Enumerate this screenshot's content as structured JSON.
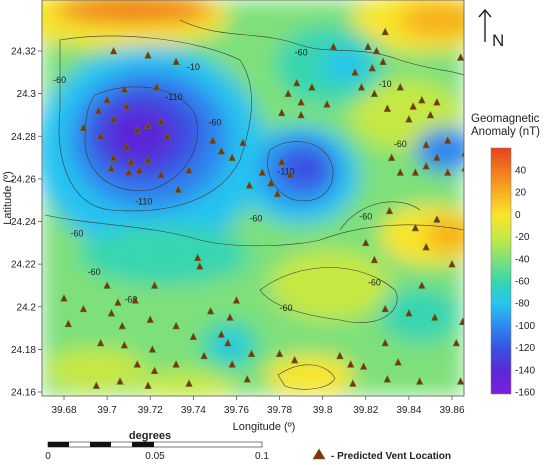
{
  "map": {
    "x_axis_title": "Longitude (º)",
    "y_axis_title": "Latitude (º)",
    "x_ticks": [
      "39.68",
      "39.7",
      "39.72",
      "39.74",
      "39.76",
      "39.78",
      "39.8",
      "39.82",
      "39.84",
      "39.86"
    ],
    "y_ticks": [
      "24.32",
      "24.3",
      "24.28",
      "24.26",
      "24.24",
      "24.22",
      "24.2",
      "24.18",
      "24.16"
    ],
    "contour_labels": [
      {
        "text": "-10",
        "lon": 39.74,
        "lat": 24.311
      },
      {
        "text": "-10",
        "lon": 39.829,
        "lat": 24.303
      },
      {
        "text": "-60",
        "lon": 39.678,
        "lat": 24.305
      },
      {
        "text": "-60",
        "lon": 39.79,
        "lat": 24.318
      },
      {
        "text": "-110",
        "lon": 39.731,
        "lat": 24.297
      },
      {
        "text": "-60",
        "lon": 39.75,
        "lat": 24.285
      },
      {
        "text": "-60",
        "lon": 39.836,
        "lat": 24.275
      },
      {
        "text": "-110",
        "lon": 39.783,
        "lat": 24.262
      },
      {
        "text": "-110",
        "lon": 39.717,
        "lat": 24.248
      },
      {
        "text": "-60",
        "lon": 39.686,
        "lat": 24.233
      },
      {
        "text": "-60",
        "lon": 39.769,
        "lat": 24.24
      },
      {
        "text": "-60",
        "lon": 39.82,
        "lat": 24.241
      },
      {
        "text": "-60",
        "lon": 39.694,
        "lat": 24.215
      },
      {
        "text": "-60",
        "lon": 39.711,
        "lat": 24.202
      },
      {
        "text": "-60",
        "lon": 39.824,
        "lat": 24.21
      },
      {
        "text": "-60",
        "lon": 39.783,
        "lat": 24.198
      }
    ]
  },
  "colorbar": {
    "title_line1": "Geomagnetic",
    "title_line2": "Anomaly (nT)",
    "ticks": [
      "40",
      "20",
      "0",
      "-20",
      "-40",
      "-60",
      "-80",
      "-100",
      "-120",
      "-140",
      "-160"
    ],
    "colors_top_to_bottom": [
      "#e8411c",
      "#f07a1c",
      "#f7b01f",
      "#f8e52c",
      "#c6e843",
      "#7ee07a",
      "#37d6b0",
      "#27c3f0",
      "#2e86ee",
      "#3a4fe2",
      "#5a28d8",
      "#7e1edc"
    ]
  },
  "vents": [
    [
      39.703,
      24.32
    ],
    [
      39.719,
      24.318
    ],
    [
      39.732,
      24.315
    ],
    [
      39.723,
      24.303
    ],
    [
      39.708,
      24.302
    ],
    [
      39.7,
      24.297
    ],
    [
      39.696,
      24.292
    ],
    [
      39.709,
      24.294
    ],
    [
      39.703,
      24.288
    ],
    [
      39.719,
      24.285
    ],
    [
      39.714,
      24.283
    ],
    [
      39.725,
      24.287
    ],
    [
      39.728,
      24.28
    ],
    [
      39.689,
      24.284
    ],
    [
      39.697,
      24.28
    ],
    [
      39.709,
      24.275
    ],
    [
      39.703,
      24.27
    ],
    [
      39.711,
      24.268
    ],
    [
      39.719,
      24.269
    ],
    [
      39.702,
      24.265
    ],
    [
      39.71,
      24.263
    ],
    [
      39.715,
      24.264
    ],
    [
      39.725,
      24.262
    ],
    [
      39.738,
      24.264
    ],
    [
      39.733,
      24.255
    ],
    [
      39.749,
      24.278
    ],
    [
      39.753,
      24.273
    ],
    [
      39.763,
      24.277
    ],
    [
      39.758,
      24.27
    ],
    [
      39.781,
      24.268
    ],
    [
      39.785,
      24.262
    ],
    [
      39.776,
      24.258
    ],
    [
      39.779,
      24.253
    ],
    [
      39.772,
      24.263
    ],
    [
      39.766,
      24.257
    ],
    [
      39.79,
      24.296
    ],
    [
      39.784,
      24.3
    ],
    [
      39.795,
      24.303
    ],
    [
      39.788,
      24.305
    ],
    [
      39.781,
      24.291
    ],
    [
      39.79,
      24.29
    ],
    [
      39.802,
      24.295
    ],
    [
      39.805,
      24.322
    ],
    [
      39.815,
      24.31
    ],
    [
      39.818,
      24.303
    ],
    [
      39.821,
      24.322
    ],
    [
      39.823,
      24.312
    ],
    [
      39.824,
      24.3
    ],
    [
      39.825,
      24.32
    ],
    [
      39.828,
      24.315
    ],
    [
      39.829,
      24.329
    ],
    [
      39.83,
      24.293
    ],
    [
      39.836,
      24.303
    ],
    [
      39.842,
      24.294
    ],
    [
      39.846,
      24.297
    ],
    [
      39.85,
      24.29
    ],
    [
      39.853,
      24.296
    ],
    [
      39.84,
      24.288
    ],
    [
      39.832,
      24.27
    ],
    [
      39.836,
      24.263
    ],
    [
      39.843,
      24.263
    ],
    [
      39.848,
      24.266
    ],
    [
      39.853,
      24.27
    ],
    [
      39.858,
      24.263
    ],
    [
      39.866,
      24.265
    ],
    [
      39.866,
      24.272
    ],
    [
      39.848,
      24.276
    ],
    [
      39.858,
      24.278
    ],
    [
      39.864,
      24.317
    ],
    [
      39.831,
      24.245
    ],
    [
      39.82,
      24.23
    ],
    [
      39.824,
      24.222
    ],
    [
      39.843,
      24.237
    ],
    [
      39.853,
      24.241
    ],
    [
      39.848,
      24.228
    ],
    [
      39.86,
      24.22
    ],
    [
      39.846,
      24.21
    ],
    [
      39.829,
      24.199
    ],
    [
      39.84,
      24.197
    ],
    [
      39.852,
      24.195
    ],
    [
      39.865,
      24.193
    ],
    [
      39.862,
      24.183
    ],
    [
      39.829,
      24.183
    ],
    [
      39.835,
      24.174
    ],
    [
      39.819,
      24.172
    ],
    [
      39.813,
      24.173
    ],
    [
      39.808,
      24.177
    ],
    [
      39.814,
      24.164
    ],
    [
      39.83,
      24.166
    ],
    [
      39.845,
      24.165
    ],
    [
      39.864,
      24.165
    ],
    [
      39.702,
      24.197
    ],
    [
      39.705,
      24.202
    ],
    [
      39.707,
      24.191
    ],
    [
      39.713,
      24.203
    ],
    [
      39.722,
      24.21
    ],
    [
      39.72,
      24.194
    ],
    [
      39.7,
      24.21
    ],
    [
      39.689,
      24.199
    ],
    [
      39.708,
      24.182
    ],
    [
      39.697,
      24.183
    ],
    [
      39.714,
      24.173
    ],
    [
      39.722,
      24.17
    ],
    [
      39.719,
      24.163
    ],
    [
      39.695,
      24.163
    ],
    [
      39.706,
      24.165
    ],
    [
      39.721,
      24.18
    ],
    [
      39.732,
      24.191
    ],
    [
      39.74,
      24.186
    ],
    [
      39.743,
      24.219
    ],
    [
      39.742,
      24.223
    ],
    [
      39.748,
      24.198
    ],
    [
      39.753,
      24.187
    ],
    [
      39.756,
      24.183
    ],
    [
      39.757,
      24.195
    ],
    [
      39.76,
      24.203
    ],
    [
      39.758,
      24.173
    ],
    [
      39.765,
      24.166
    ],
    [
      39.767,
      24.178
    ],
    [
      39.745,
      24.177
    ],
    [
      39.738,
      24.164
    ],
    [
      39.732,
      24.173
    ],
    [
      39.78,
      24.178
    ],
    [
      39.787,
      24.175
    ],
    [
      39.68,
      24.204
    ],
    [
      39.682,
      24.192
    ]
  ],
  "legend": {
    "vent_label": "- Predicted Vent Location"
  },
  "scalebar": {
    "title": "degrees",
    "labels": [
      "0",
      "0.05",
      "0.1"
    ]
  },
  "north_arrow": {
    "label": "N"
  }
}
